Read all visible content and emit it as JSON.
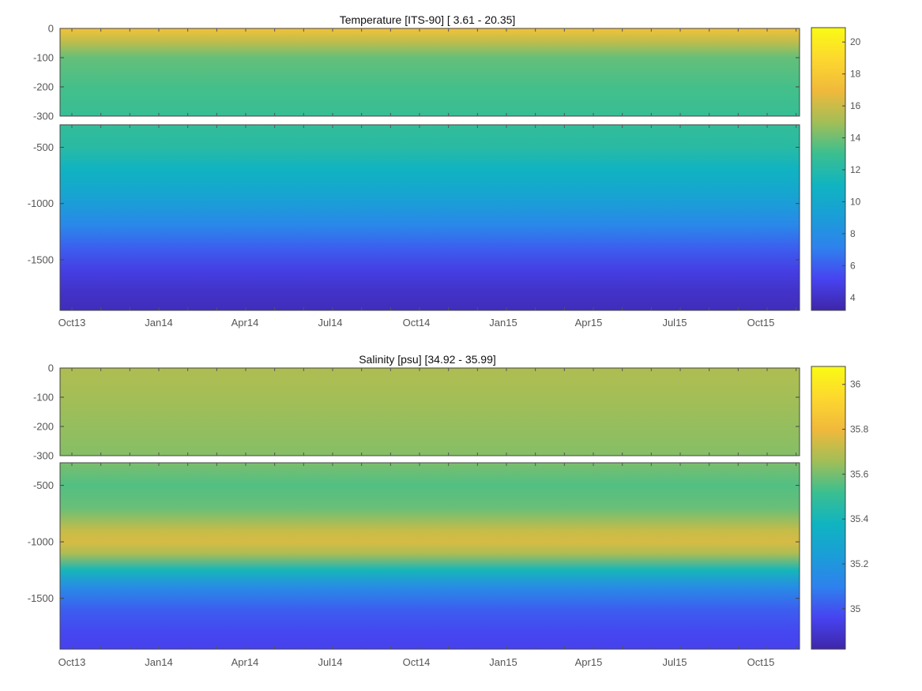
{
  "chart_data": [
    {
      "type": "heatmap",
      "title": "Temperature [ITS-90]   [ 3.61 - 20.35]",
      "variable": "Temperature",
      "units": "ITS-90",
      "value_range": [
        3.61,
        20.35
      ],
      "x_tick_labels": [
        "Oct13",
        "Jan14",
        "Apr14",
        "Jul14",
        "Oct14",
        "Jan15",
        "Apr15",
        "Jul15",
        "Oct15"
      ],
      "upper_panel": {
        "ylim": [
          -300,
          0
        ],
        "y_ticks": [
          0,
          -100,
          -200,
          -300
        ]
      },
      "lower_panel": {
        "ylim": [
          -1950,
          -300
        ],
        "y_ticks": [
          -500,
          -1000,
          -1500
        ]
      },
      "colorbar": {
        "range": [
          3.2,
          20.9
        ],
        "ticks": [
          4,
          6,
          8,
          10,
          12,
          14,
          16,
          18,
          20
        ]
      },
      "colormap": [
        "#3e26a8",
        "#4743f1",
        "#2e82ed",
        "#1a9ed7",
        "#10b4c0",
        "#3cbf8f",
        "#a4be56",
        "#f1b93b",
        "#fdd82e",
        "#f9fb14"
      ],
      "depth_profile": [
        {
          "depth": 0,
          "value": 17.5
        },
        {
          "depth": -50,
          "value": 15.5
        },
        {
          "depth": -100,
          "value": 13.8
        },
        {
          "depth": -200,
          "value": 13.2
        },
        {
          "depth": -300,
          "value": 12.8
        },
        {
          "depth": -500,
          "value": 12.2
        },
        {
          "depth": -700,
          "value": 11.0
        },
        {
          "depth": -900,
          "value": 9.8
        },
        {
          "depth": -1000,
          "value": 9.0
        },
        {
          "depth": -1200,
          "value": 7.5
        },
        {
          "depth": -1400,
          "value": 6.0
        },
        {
          "depth": -1600,
          "value": 4.8
        },
        {
          "depth": -1800,
          "value": 4.0
        },
        {
          "depth": -1950,
          "value": 3.7
        }
      ]
    },
    {
      "type": "heatmap",
      "title": "Salinity [psu]   [34.92 - 35.99]",
      "variable": "Salinity",
      "units": "psu",
      "value_range": [
        34.92,
        35.99
      ],
      "x_tick_labels": [
        "Oct13",
        "Jan14",
        "Apr14",
        "Jul14",
        "Oct14",
        "Jan15",
        "Apr15",
        "Jul15",
        "Oct15"
      ],
      "upper_panel": {
        "ylim": [
          -300,
          0
        ],
        "y_ticks": [
          0,
          -100,
          -200,
          -300
        ]
      },
      "lower_panel": {
        "ylim": [
          -1950,
          -300
        ],
        "y_ticks": [
          -500,
          -1000,
          -1500
        ]
      },
      "colorbar": {
        "range": [
          34.82,
          36.08
        ],
        "ticks": [
          35,
          35.2,
          35.4,
          35.6,
          35.8,
          36
        ]
      },
      "colormap": [
        "#3e26a8",
        "#4743f1",
        "#2e82ed",
        "#1a9ed7",
        "#10b4c0",
        "#3cbf8f",
        "#a4be56",
        "#f1b93b",
        "#fdd82e",
        "#f9fb14"
      ],
      "depth_profile": [
        {
          "depth": 0,
          "value": 35.68
        },
        {
          "depth": -100,
          "value": 35.66
        },
        {
          "depth": -300,
          "value": 35.62
        },
        {
          "depth": -500,
          "value": 35.55
        },
        {
          "depth": -700,
          "value": 35.58
        },
        {
          "depth": -900,
          "value": 35.72
        },
        {
          "depth": -1000,
          "value": 35.75
        },
        {
          "depth": -1100,
          "value": 35.68
        },
        {
          "depth": -1250,
          "value": 35.4
        },
        {
          "depth": -1400,
          "value": 35.15
        },
        {
          "depth": -1600,
          "value": 35.02
        },
        {
          "depth": -1800,
          "value": 34.97
        },
        {
          "depth": -1950,
          "value": 34.95
        }
      ]
    }
  ]
}
